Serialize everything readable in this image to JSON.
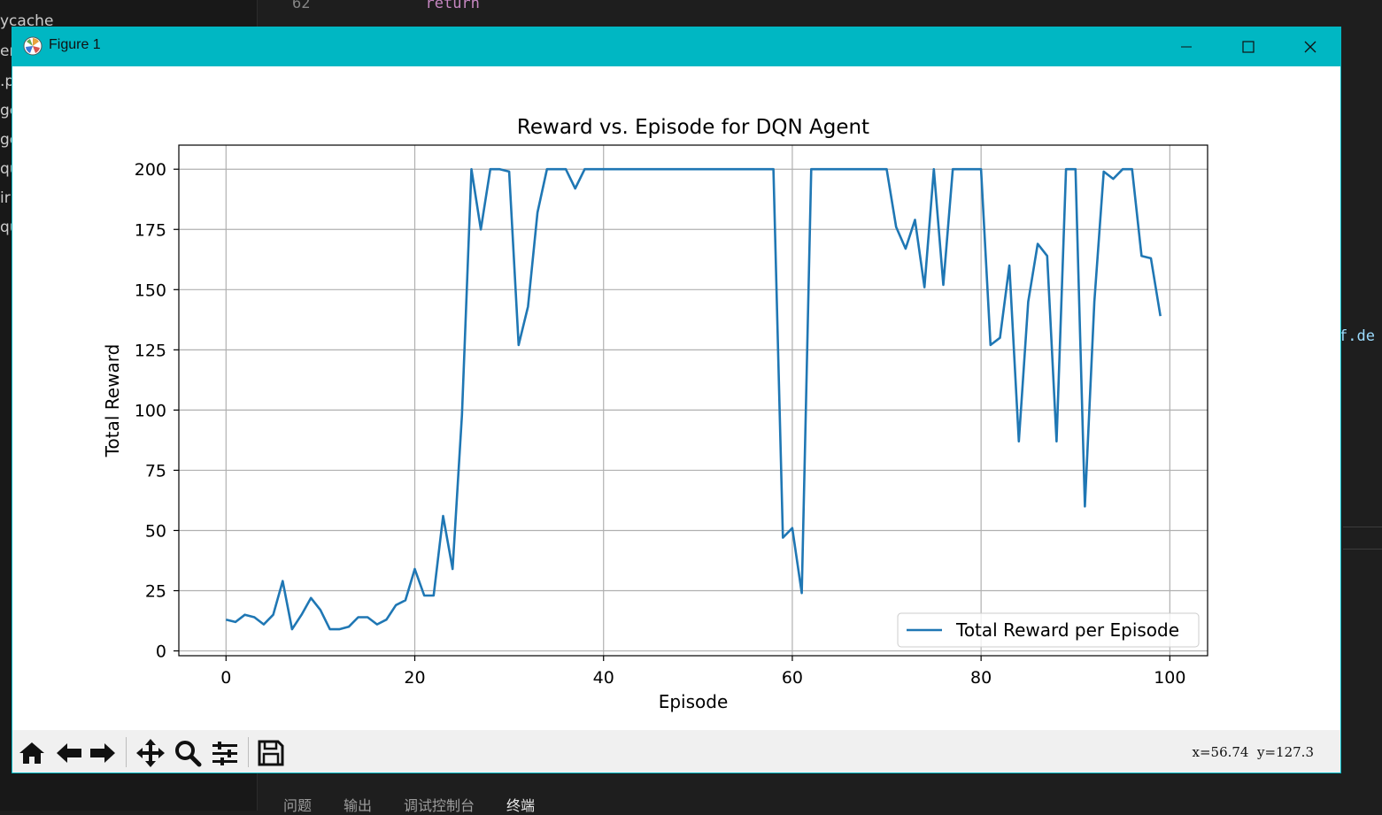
{
  "background": {
    "sidebar_fragments": [
      "ycache",
      "er",
      ".p",
      "ge",
      "ge",
      "qu",
      "ir",
      "qu"
    ],
    "code_line_number": "62",
    "code_keyword": "return",
    "code_right_fragment": "f.de",
    "panel_tabs": [
      "问题",
      "输出",
      "调试控制台",
      "终端"
    ]
  },
  "window": {
    "title": "Figure 1",
    "accent_color": "#00b7c3",
    "controls": [
      "minimize-icon",
      "maximize-icon",
      "close-icon"
    ]
  },
  "toolbar": {
    "icons": [
      "home-icon",
      "back-icon",
      "forward-icon",
      "pan-icon",
      "zoom-icon",
      "configure-icon",
      "save-icon"
    ],
    "coordinates": "x=56.74  y=127.3"
  },
  "chart_data": {
    "type": "line",
    "title": "Reward vs. Episode for DQN Agent",
    "xlabel": "Episode",
    "ylabel": "Total Reward",
    "xlim": [
      -5,
      104
    ],
    "ylim": [
      -2,
      210
    ],
    "xticks": [
      0,
      20,
      40,
      60,
      80,
      100
    ],
    "yticks": [
      0,
      25,
      50,
      75,
      100,
      125,
      150,
      175,
      200
    ],
    "grid": true,
    "legend_position": "lower-right",
    "series": [
      {
        "name": "Total Reward per Episode",
        "color": "#1f77b4",
        "x": [
          0,
          1,
          2,
          3,
          4,
          5,
          6,
          7,
          8,
          9,
          10,
          11,
          12,
          13,
          14,
          15,
          16,
          17,
          18,
          19,
          20,
          21,
          22,
          23,
          24,
          25,
          26,
          27,
          28,
          29,
          30,
          31,
          32,
          33,
          34,
          35,
          36,
          37,
          38,
          39,
          40,
          41,
          42,
          43,
          44,
          45,
          46,
          47,
          48,
          49,
          50,
          51,
          52,
          53,
          54,
          55,
          56,
          57,
          58,
          59,
          60,
          61,
          62,
          63,
          64,
          65,
          66,
          67,
          68,
          69,
          70,
          71,
          72,
          73,
          74,
          75,
          76,
          77,
          78,
          79,
          80,
          81,
          82,
          83,
          84,
          85,
          86,
          87,
          88,
          89,
          90,
          91,
          92,
          93,
          94,
          95,
          96,
          97,
          98,
          99
        ],
        "values": [
          13,
          12,
          15,
          14,
          11,
          15,
          29,
          9,
          15,
          22,
          17,
          9,
          9,
          10,
          14,
          14,
          11,
          13,
          19,
          21,
          34,
          23,
          23,
          56,
          34,
          98,
          200,
          175,
          200,
          200,
          199,
          127,
          143,
          182,
          200,
          200,
          200,
          192,
          200,
          200,
          200,
          200,
          200,
          200,
          200,
          200,
          200,
          200,
          200,
          200,
          200,
          200,
          200,
          200,
          200,
          200,
          200,
          200,
          200,
          47,
          51,
          24,
          200,
          200,
          200,
          200,
          200,
          200,
          200,
          200,
          200,
          176,
          167,
          179,
          151,
          200,
          152,
          200,
          200,
          200,
          200,
          127,
          130,
          160,
          87,
          145,
          169,
          164,
          87,
          200,
          200,
          60,
          145,
          199,
          196,
          200,
          200,
          164,
          163,
          139
        ]
      }
    ]
  }
}
